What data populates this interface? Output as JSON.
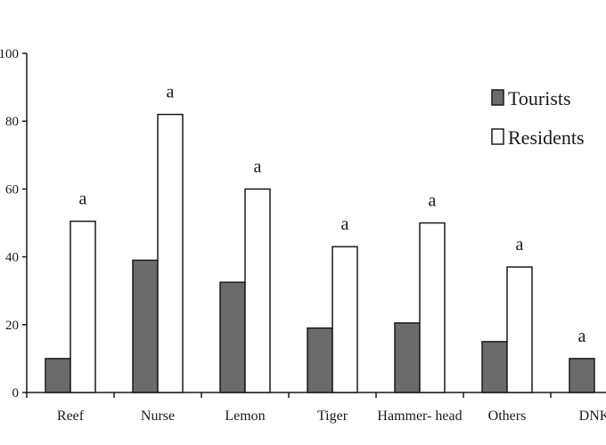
{
  "chart_data": {
    "type": "bar",
    "title": "",
    "xlabel": "",
    "ylabel": "",
    "categories": [
      "Reef",
      "Nurse",
      "Lemon",
      "Tiger",
      "Hammer- head",
      "Others",
      "DNK"
    ],
    "series": [
      {
        "name": "Tourists",
        "values": [
          10,
          39,
          32.5,
          19,
          20.5,
          15,
          10
        ],
        "color": "#6b6b6b"
      },
      {
        "name": "Residents",
        "values": [
          50.5,
          82,
          60,
          43,
          50,
          37,
          null
        ],
        "color": "#ffffff"
      }
    ],
    "significance_labels": [
      "a",
      "a",
      "a",
      "a",
      "a",
      "a",
      "a"
    ],
    "ylim": [
      0,
      100
    ],
    "yticks": [
      0,
      20,
      40,
      60,
      80,
      100
    ],
    "ytick_labels": [
      "0",
      "20",
      "40",
      "60",
      "80",
      "100"
    ],
    "legend": {
      "position": "top-right",
      "items": [
        "Tourists",
        "Residents"
      ]
    },
    "grid": false
  }
}
